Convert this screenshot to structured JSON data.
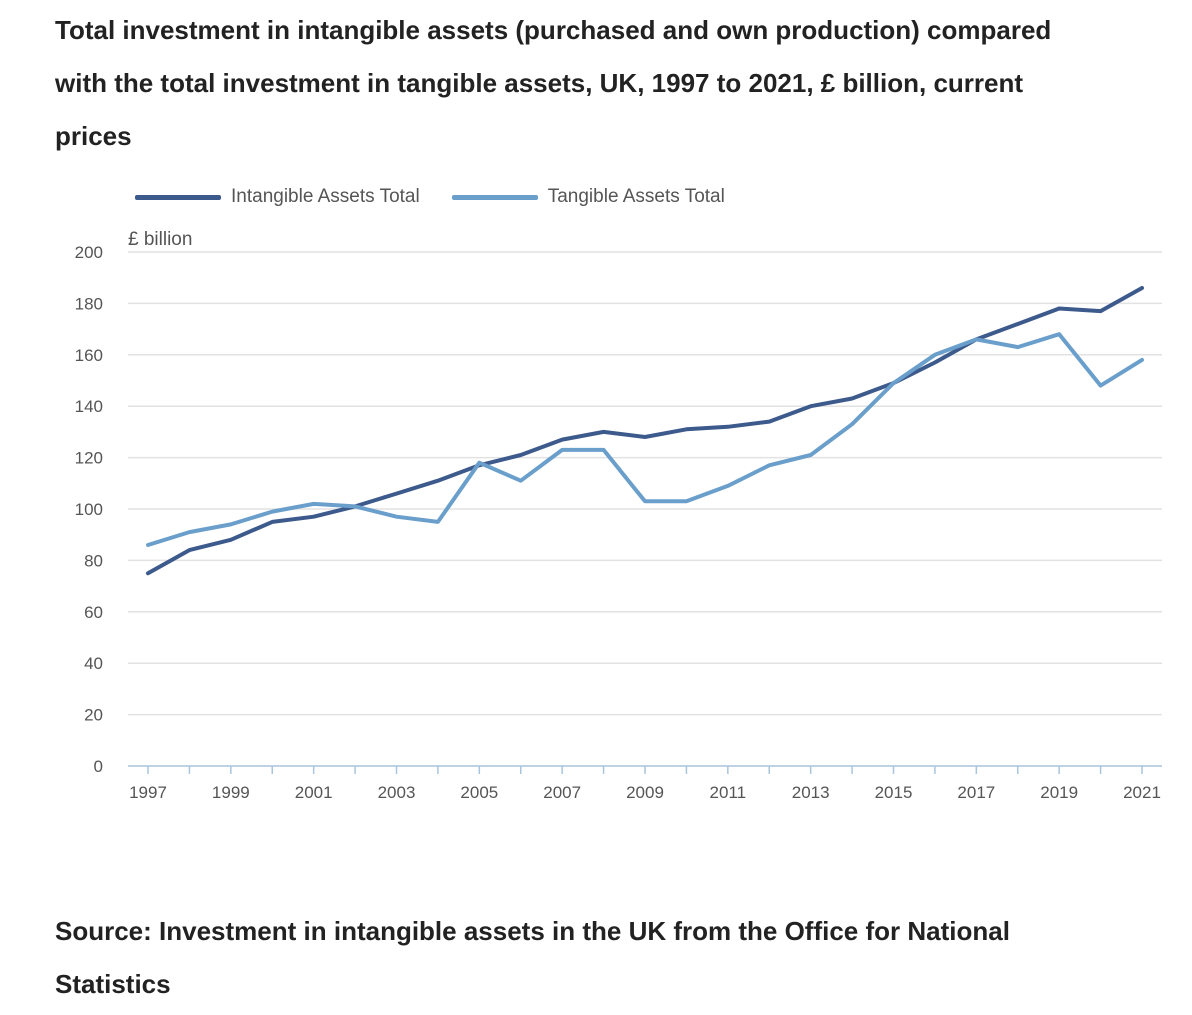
{
  "chart_data": {
    "type": "line",
    "title": "Total investment in intangible assets (purchased and own production) compared with the total investment in tangible assets, UK, 1997 to 2021, £ billion, current prices",
    "xlabel": "",
    "ylabel": "£ billion",
    "x": [
      1997,
      1998,
      1999,
      2000,
      2001,
      2002,
      2003,
      2004,
      2005,
      2006,
      2007,
      2008,
      2009,
      2010,
      2011,
      2012,
      2013,
      2014,
      2015,
      2016,
      2017,
      2018,
      2019,
      2020,
      2021
    ],
    "x_tick_labels": [
      "1997",
      "1999",
      "2001",
      "2003",
      "2005",
      "2007",
      "2009",
      "2011",
      "2013",
      "2015",
      "2017",
      "2019",
      "2021"
    ],
    "y_ticks": [
      0,
      20,
      40,
      60,
      80,
      100,
      120,
      140,
      160,
      180,
      200
    ],
    "ylim": [
      0,
      200
    ],
    "xlim": [
      1997,
      2021
    ],
    "grid": true,
    "legend_position": "top-left",
    "series": [
      {
        "name": "Intangible Assets Total",
        "color": "#3d5a8c",
        "values": [
          75,
          84,
          88,
          95,
          97,
          101,
          106,
          111,
          117,
          121,
          127,
          130,
          128,
          131,
          132,
          134,
          140,
          143,
          149,
          157,
          166,
          172,
          178,
          177,
          186
        ]
      },
      {
        "name": "Tangible Assets Total",
        "color": "#6a9fcc",
        "values": [
          86,
          91,
          94,
          99,
          102,
          101,
          97,
          95,
          118,
          111,
          123,
          123,
          103,
          103,
          109,
          117,
          121,
          133,
          149,
          160,
          166,
          163,
          168,
          148,
          158
        ]
      }
    ]
  },
  "source": {
    "text": "Source: Investment in intangible assets in the UK from the Office for National Statistics"
  }
}
